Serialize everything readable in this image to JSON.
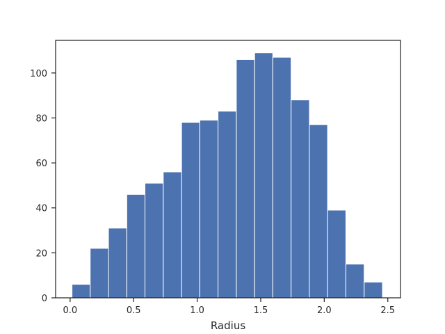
{
  "chart_data": {
    "type": "bar",
    "subtype": "histogram",
    "title": "",
    "xlabel": "Radius",
    "ylabel": "",
    "xlim": [
      -0.114,
      2.6
    ],
    "ylim": [
      0,
      114.5
    ],
    "xticks": [
      0.0,
      0.5,
      1.0,
      1.5,
      2.0,
      2.5
    ],
    "xtick_labels": [
      "0.0",
      "0.5",
      "1.0",
      "1.5",
      "2.0",
      "2.5"
    ],
    "yticks": [
      0,
      20,
      40,
      60,
      80,
      100
    ],
    "ytick_labels": [
      "0",
      "20",
      "40",
      "60",
      "80",
      "100"
    ],
    "bin_edges": [
      0.015,
      0.158,
      0.302,
      0.446,
      0.589,
      0.733,
      0.877,
      1.02,
      1.164,
      1.308,
      1.452,
      1.595,
      1.739,
      1.883,
      2.026,
      2.17,
      2.314,
      2.458
    ],
    "counts": [
      6,
      22,
      31,
      46,
      51,
      56,
      78,
      79,
      83,
      106,
      109,
      107,
      88,
      77,
      39,
      15,
      7
    ],
    "bar_color": "#4c72b0",
    "grid": false,
    "legend": "none"
  }
}
